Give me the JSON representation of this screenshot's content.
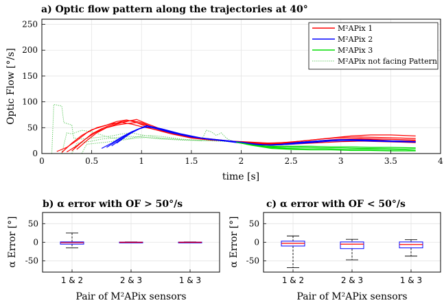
{
  "chart_data": [
    {
      "id": "a",
      "type": "line",
      "title": "a) Optic flow pattern along the trajectories at 40°",
      "xlabel": "time [s]",
      "ylabel": "Optic Flow [°/s]",
      "xlim": [
        0,
        4
      ],
      "ylim": [
        0,
        260
      ],
      "xticks": [
        0,
        0.5,
        1,
        1.5,
        2,
        2.5,
        3,
        3.5,
        4
      ],
      "xtick_labels": [
        "0",
        "0.5",
        "1",
        "1.5",
        "2",
        "2.5",
        "3",
        "3.5",
        "4"
      ],
      "yticks": [
        0,
        50,
        100,
        150,
        200,
        250
      ],
      "ytick_labels": [
        "0",
        "50",
        "100",
        "150",
        "200",
        "250"
      ],
      "grid": true,
      "legend_position": "top-right",
      "legend": [
        "M²APix 1",
        "M²APix 2",
        "M²APix 3",
        "M²APix not facing Pattern"
      ],
      "colors": {
        "pix1": "#ff0000",
        "pix2": "#0000ff",
        "pix3": "#00dd00",
        "notfacing": "#66cc66"
      },
      "series": [
        {
          "name": "M²APix 1",
          "color": "#ff0000",
          "traces": [
            {
              "x": [
                0.15,
                0.25,
                0.35,
                0.45,
                0.55,
                0.65,
                0.75,
                0.85,
                0.95,
                1.1,
                1.3,
                1.5,
                1.7,
                1.9,
                2.1,
                2.3,
                2.5,
                2.7,
                2.9,
                3.1,
                3.3,
                3.5,
                3.75
              ],
              "y": [
                4,
                12,
                25,
                40,
                50,
                55,
                62,
                65,
                60,
                48,
                38,
                30,
                26,
                24,
                22,
                20,
                22,
                26,
                30,
                34,
                36,
                36,
                34
              ]
            },
            {
              "x": [
                0.2,
                0.3,
                0.4,
                0.5,
                0.6,
                0.7,
                0.8,
                0.9,
                1.0,
                1.2,
                1.4,
                1.6,
                1.8,
                2.0,
                2.2,
                2.4,
                2.6,
                2.8,
                3.0,
                3.2,
                3.4,
                3.6,
                3.75
              ],
              "y": [
                2,
                20,
                35,
                46,
                52,
                58,
                60,
                57,
                52,
                44,
                35,
                28,
                25,
                23,
                20,
                21,
                24,
                28,
                31,
                32,
                31,
                30,
                29
              ]
            },
            {
              "x": [
                0.25,
                0.35,
                0.45,
                0.55,
                0.65,
                0.75,
                0.85,
                0.95,
                1.05,
                1.2,
                1.4,
                1.6,
                1.8,
                2.0,
                2.2,
                2.4,
                2.6,
                2.8,
                3.0,
                3.2,
                3.4,
                3.6,
                3.75
              ],
              "y": [
                3,
                15,
                30,
                42,
                50,
                55,
                58,
                60,
                55,
                46,
                36,
                30,
                26,
                22,
                19,
                20,
                22,
                25,
                28,
                29,
                28,
                27,
                26
              ]
            },
            {
              "x": [
                0.3,
                0.4,
                0.5,
                0.6,
                0.7,
                0.8,
                0.9,
                1.0,
                1.1,
                1.3,
                1.5,
                1.7,
                1.9,
                2.1,
                2.3,
                2.5,
                2.7,
                2.9,
                3.1,
                3.3,
                3.5,
                3.75
              ],
              "y": [
                5,
                22,
                38,
                48,
                56,
                62,
                64,
                60,
                52,
                40,
                32,
                27,
                24,
                20,
                18,
                20,
                23,
                26,
                28,
                27,
                25,
                24
              ]
            },
            {
              "x": [
                0.35,
                0.45,
                0.55,
                0.65,
                0.75,
                0.85,
                0.95,
                1.05,
                1.2,
                1.4,
                1.6,
                1.8,
                2.0,
                2.2,
                2.4,
                2.6,
                2.8,
                3.0,
                3.2,
                3.4,
                3.6,
                3.75
              ],
              "y": [
                8,
                25,
                40,
                50,
                57,
                62,
                66,
                58,
                47,
                36,
                29,
                25,
                22,
                18,
                17,
                19,
                21,
                23,
                24,
                23,
                22,
                21
              ]
            }
          ]
        },
        {
          "name": "M²APix 2",
          "color": "#0000ff",
          "traces": [
            {
              "x": [
                0.6,
                0.7,
                0.8,
                0.9,
                1.0,
                1.1,
                1.2,
                1.4,
                1.6,
                1.8,
                2.0,
                2.2,
                2.4,
                2.6,
                2.8,
                3.0,
                3.2,
                3.4,
                3.6,
                3.75
              ],
              "y": [
                10,
                20,
                32,
                42,
                50,
                52,
                48,
                38,
                30,
                25,
                20,
                16,
                18,
                22,
                25,
                27,
                26,
                25,
                24,
                23
              ]
            },
            {
              "x": [
                0.65,
                0.75,
                0.85,
                0.95,
                1.05,
                1.15,
                1.3,
                1.5,
                1.7,
                1.9,
                2.1,
                2.3,
                2.5,
                2.7,
                2.9,
                3.1,
                3.3,
                3.5,
                3.75
              ],
              "y": [
                12,
                24,
                36,
                46,
                54,
                50,
                42,
                33,
                27,
                23,
                18,
                16,
                19,
                23,
                26,
                27,
                26,
                24,
                23
              ]
            },
            {
              "x": [
                0.7,
                0.8,
                0.9,
                1.0,
                1.1,
                1.2,
                1.4,
                1.6,
                1.8,
                2.0,
                2.2,
                2.4,
                2.6,
                2.8,
                3.0,
                3.2,
                3.4,
                3.6,
                3.75
              ],
              "y": [
                15,
                28,
                40,
                50,
                52,
                46,
                37,
                30,
                26,
                22,
                17,
                17,
                20,
                24,
                27,
                26,
                25,
                24,
                23
              ]
            },
            {
              "x": [
                0.75,
                0.85,
                0.95,
                1.05,
                1.15,
                1.3,
                1.5,
                1.7,
                1.9,
                2.1,
                2.3,
                2.5,
                2.7,
                2.9,
                3.1,
                3.3,
                3.5,
                3.75
              ],
              "y": [
                20,
                34,
                46,
                52,
                48,
                40,
                32,
                27,
                24,
                19,
                16,
                18,
                21,
                24,
                25,
                24,
                23,
                22
              ]
            }
          ]
        },
        {
          "name": "M²APix 3",
          "color": "#00dd00",
          "traces": [
            {
              "x": [
                1.95,
                2.1,
                2.3,
                2.5,
                2.7,
                2.9,
                3.1,
                3.3,
                3.5,
                3.75
              ],
              "y": [
                22,
                16,
                14,
                14,
                14,
                13,
                13,
                12,
                12,
                11
              ]
            },
            {
              "x": [
                2.0,
                2.2,
                2.4,
                2.6,
                2.8,
                3.0,
                3.2,
                3.4,
                3.6,
                3.75
              ],
              "y": [
                20,
                14,
                12,
                12,
                11,
                11,
                10,
                10,
                9,
                9
              ]
            },
            {
              "x": [
                2.05,
                2.25,
                2.45,
                2.65,
                2.85,
                3.05,
                3.25,
                3.45,
                3.65,
                3.75
              ],
              "y": [
                18,
                12,
                10,
                9,
                9,
                8,
                8,
                7,
                7,
                6
              ]
            },
            {
              "x": [
                2.1,
                2.3,
                2.5,
                2.7,
                2.9,
                3.1,
                3.3,
                3.5,
                3.75
              ],
              "y": [
                16,
                10,
                8,
                7,
                7,
                6,
                6,
                5,
                5
              ]
            }
          ]
        },
        {
          "name": "M²APix not facing Pattern",
          "color": "#66cc66",
          "style": "dotted",
          "traces": [
            {
              "x": [
                0.1,
                0.12,
                0.2,
                0.22,
                0.3,
                0.32,
                0.4,
                0.5,
                0.6,
                0.7,
                0.8,
                0.9,
                1.0,
                1.2,
                1.4,
                1.6,
                1.8,
                2.0
              ],
              "y": [
                0,
                95,
                92,
                60,
                55,
                30,
                28,
                30,
                32,
                34,
                38,
                40,
                36,
                30,
                27,
                26,
                25,
                22
              ]
            },
            {
              "x": [
                0.2,
                0.25,
                0.3,
                0.4,
                0.5,
                0.6,
                0.7,
                0.8,
                0.9,
                1.0,
                1.1,
                1.2,
                1.4,
                1.6,
                1.8,
                2.0
              ],
              "y": [
                0,
                40,
                38,
                45,
                42,
                36,
                30,
                28,
                30,
                34,
                35,
                33,
                28,
                25,
                24,
                22
              ]
            },
            {
              "x": [
                0.3,
                0.35,
                0.5,
                0.6,
                0.7,
                0.8,
                0.9,
                1.0,
                1.2,
                1.4,
                1.6,
                1.65,
                1.7,
                1.75,
                1.8,
                1.85,
                1.9,
                2.0
              ],
              "y": [
                0,
                20,
                24,
                28,
                30,
                32,
                33,
                32,
                28,
                26,
                25,
                45,
                42,
                35,
                40,
                30,
                25,
                20
              ]
            },
            {
              "x": [
                0.4,
                0.45,
                0.55,
                0.65,
                0.75,
                0.85,
                0.95,
                1.05,
                1.2,
                1.4,
                1.6,
                1.8,
                2.0
              ],
              "y": [
                0,
                18,
                20,
                22,
                25,
                27,
                30,
                31,
                29,
                27,
                25,
                24,
                21
              ]
            }
          ]
        }
      ]
    },
    {
      "id": "b",
      "type": "box",
      "title": "b) α error with OF > 50°/s",
      "xlabel": "Pair of M²APix sensors",
      "ylabel": "α Error [°]",
      "ylim": [
        -80,
        80
      ],
      "yticks": [
        -50,
        0,
        50
      ],
      "ytick_labels": [
        "-50",
        "0",
        "50"
      ],
      "categories": [
        "1 & 2",
        "2 & 3",
        "1 & 3"
      ],
      "boxes": [
        {
          "min": -15,
          "q1": -5,
          "median": -1,
          "q3": 1,
          "max": 25
        },
        {
          "min": -1,
          "q1": -0.5,
          "median": 0,
          "q3": 0.5,
          "max": 1
        },
        {
          "min": -1,
          "q1": -0.5,
          "median": 0,
          "q3": 0.5,
          "max": 1
        }
      ]
    },
    {
      "id": "c",
      "type": "box",
      "title": "c) α error with OF < 50°/s",
      "xlabel": "Pair of M²APix sensors",
      "ylabel": "α Error [°]",
      "ylim": [
        -80,
        80
      ],
      "yticks": [
        -50,
        0,
        50
      ],
      "ytick_labels": [
        "-50",
        "0",
        "50"
      ],
      "categories": [
        "1 & 2",
        "2 & 3",
        "1 & 3"
      ],
      "boxes": [
        {
          "min": -68,
          "q1": -10,
          "median": -3,
          "q3": 3,
          "max": 17
        },
        {
          "min": -47,
          "q1": -17,
          "median": -5,
          "q3": 1,
          "max": 8
        },
        {
          "min": -37,
          "q1": -15,
          "median": -6,
          "q3": 1,
          "max": 7
        }
      ]
    }
  ]
}
